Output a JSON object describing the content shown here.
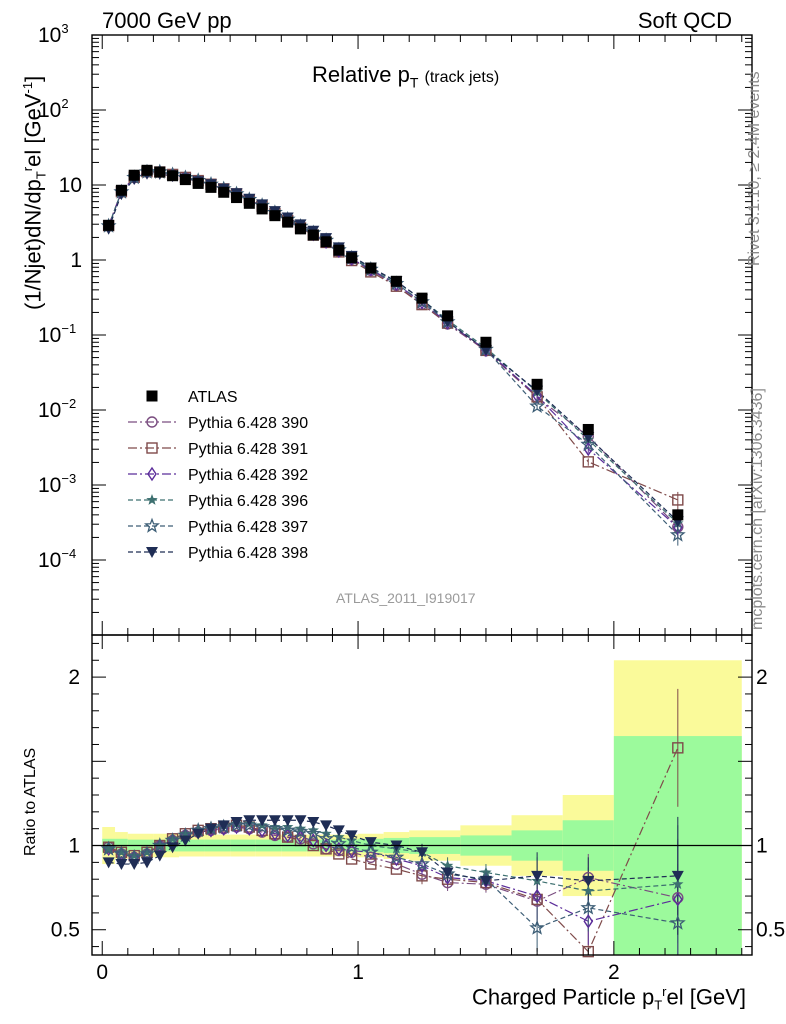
{
  "header": {
    "energy_label": "7000 GeV pp",
    "process_label": "Soft QCD"
  },
  "side_notes": {
    "rivet": "Rivet 3.1.10, ≥ 2.4M events",
    "mcplots": "mcplots.cern.ch [arXiv:1306.3436]"
  },
  "colors": {
    "data": "#000000",
    "p390": "#7a4d80",
    "p391": "#7f4a4a",
    "p392": "#5b2d9a",
    "p396": "#3d7070",
    "p397": "#3d5e76",
    "p398": "#1f2d55",
    "band_inner": "#9cfa9c",
    "band_outer": "#fafa9a"
  },
  "chart_data": [
    {
      "type": "scatter",
      "name": "main-panel",
      "title": "Relative p",
      "title_sub": "T",
      "title_note": "(track jets)",
      "ylabel": "(1/Njet)dN/dp",
      "ylabel_sub": "T",
      "ylabel_sup": "r",
      "ylabel_tail": "el [GeV",
      "ylabel_tail_sup": "-1",
      "ylabel_close": "]",
      "yscale": "log",
      "ylim": [
        1e-05,
        1000
      ],
      "xlim": [
        -0.04,
        2.54
      ],
      "ytick_labels": [
        {
          "value": 1000,
          "base": "10",
          "exp": "3"
        },
        {
          "value": 100,
          "base": "10",
          "exp": "2"
        },
        {
          "value": 10,
          "base": "10",
          "exp": ""
        },
        {
          "value": 1,
          "base": "1",
          "exp": ""
        },
        {
          "value": 0.1,
          "base": "10",
          "exp": "−1"
        },
        {
          "value": 0.01,
          "base": "10",
          "exp": "−2"
        },
        {
          "value": 0.001,
          "base": "10",
          "exp": "−3"
        },
        {
          "value": 0.0001,
          "base": "10",
          "exp": "−4"
        }
      ],
      "watermark": "ATLAS_2011_I919017",
      "legend_position": "middle-left",
      "x": [
        0.025,
        0.075,
        0.125,
        0.175,
        0.225,
        0.275,
        0.325,
        0.375,
        0.425,
        0.475,
        0.525,
        0.575,
        0.625,
        0.675,
        0.725,
        0.775,
        0.825,
        0.875,
        0.925,
        0.975,
        1.05,
        1.15,
        1.25,
        1.35,
        1.5,
        1.7,
        1.9,
        2.25
      ],
      "series": [
        {
          "name": "ATLAS",
          "key": "data",
          "marker": "filled-square",
          "values": [
            2.9,
            8.5,
            13.5,
            15.7,
            14.9,
            13.3,
            11.8,
            10.5,
            9.3,
            8.0,
            6.8,
            5.7,
            4.8,
            3.9,
            3.2,
            2.6,
            2.15,
            1.75,
            1.35,
            1.07,
            0.78,
            0.52,
            0.31,
            0.18,
            0.08,
            0.022,
            0.0055,
            0.0004
          ]
        },
        {
          "name": "Pythia 6.428 390",
          "key": "p390",
          "marker": "open-circle",
          "dash": "9,3,2,3",
          "ratios": [
            0.99,
            0.95,
            0.93,
            0.95,
            1.0,
            1.03,
            1.06,
            1.08,
            1.09,
            1.1,
            1.11,
            1.1,
            1.08,
            1.06,
            1.05,
            1.04,
            1.01,
            0.98,
            0.97,
            0.96,
            0.93,
            0.89,
            0.83,
            0.78,
            0.77,
            0.67,
            0.81,
            0.69
          ]
        },
        {
          "name": "Pythia 6.428 391",
          "key": "p391",
          "marker": "open-square",
          "dash": "9,3,2,3",
          "ratios": [
            0.99,
            0.96,
            0.94,
            0.96,
            1.0,
            1.04,
            1.07,
            1.09,
            1.1,
            1.11,
            1.12,
            1.11,
            1.09,
            1.07,
            1.05,
            1.03,
            1.0,
            0.98,
            0.95,
            0.92,
            0.89,
            0.86,
            0.82,
            0.8,
            0.78,
            0.68,
            0.37,
            1.58
          ]
        },
        {
          "name": "Pythia 6.428 392",
          "key": "p392",
          "marker": "open-diamond",
          "dash": "9,3,2,3",
          "ratios": [
            0.98,
            0.95,
            0.93,
            0.95,
            1.0,
            1.03,
            1.06,
            1.08,
            1.09,
            1.1,
            1.11,
            1.1,
            1.09,
            1.07,
            1.06,
            1.05,
            1.03,
            1.0,
            0.98,
            0.97,
            0.96,
            0.92,
            0.88,
            0.81,
            0.79,
            0.7,
            0.55,
            0.68
          ]
        },
        {
          "name": "Pythia 6.428 396",
          "key": "p396",
          "marker": "filled-star",
          "dash": "5,3",
          "ratios": [
            0.98,
            0.96,
            0.94,
            0.96,
            1.0,
            1.04,
            1.07,
            1.09,
            1.1,
            1.12,
            1.13,
            1.13,
            1.12,
            1.11,
            1.11,
            1.1,
            1.09,
            1.07,
            1.05,
            1.03,
            1.0,
            0.98,
            0.96,
            0.88,
            0.84,
            0.79,
            0.73,
            0.77
          ]
        },
        {
          "name": "Pythia 6.428 397",
          "key": "p397",
          "marker": "open-star",
          "dash": "5,3",
          "ratios": [
            0.98,
            0.95,
            0.93,
            0.95,
            1.0,
            1.03,
            1.06,
            1.09,
            1.1,
            1.11,
            1.12,
            1.12,
            1.11,
            1.1,
            1.09,
            1.08,
            1.07,
            1.04,
            1.01,
            0.99,
            0.96,
            0.93,
            0.89,
            0.83,
            0.8,
            0.51,
            0.63,
            0.54
          ]
        },
        {
          "name": "Pythia 6.428 398",
          "key": "p398",
          "marker": "filled-triangle-down",
          "dash": "5,3",
          "ratios": [
            0.9,
            0.89,
            0.89,
            0.9,
            0.94,
            0.99,
            1.03,
            1.07,
            1.1,
            1.12,
            1.14,
            1.15,
            1.15,
            1.15,
            1.15,
            1.15,
            1.14,
            1.12,
            1.09,
            1.06,
            1.02,
            1.0,
            0.96,
            0.84,
            0.79,
            0.82,
            0.79,
            0.82
          ]
        }
      ]
    },
    {
      "type": "scatter",
      "name": "ratio-panel",
      "ylabel": "Ratio to ATLAS",
      "xlabel": "Charged Particle p",
      "xlabel_sub": "T",
      "xlabel_sup": "r",
      "xlabel_tail": "el [GeV]",
      "xlim": [
        -0.04,
        2.54
      ],
      "ylim": [
        0.35,
        2.25
      ],
      "ytick_labels": [
        "0.5",
        "1",
        "2"
      ],
      "xtick_labels": [
        "0",
        "1",
        "2"
      ],
      "reference_line": 1,
      "band_edges": [
        0.0,
        0.05,
        0.1,
        0.2,
        0.3,
        0.4,
        0.5,
        0.6,
        0.7,
        0.8,
        0.9,
        1.0,
        1.1,
        1.2,
        1.4,
        1.6,
        1.8,
        2.0,
        2.5
      ],
      "band_inner_halfwidth": [
        0.04,
        0.04,
        0.035,
        0.035,
        0.035,
        0.035,
        0.035,
        0.035,
        0.035,
        0.035,
        0.035,
        0.04,
        0.045,
        0.05,
        0.06,
        0.09,
        0.15,
        0.65
      ],
      "band_outer_halfwidth": [
        0.11,
        0.08,
        0.07,
        0.07,
        0.065,
        0.065,
        0.065,
        0.065,
        0.065,
        0.065,
        0.065,
        0.07,
        0.08,
        0.09,
        0.12,
        0.18,
        0.3,
        1.1
      ]
    }
  ]
}
